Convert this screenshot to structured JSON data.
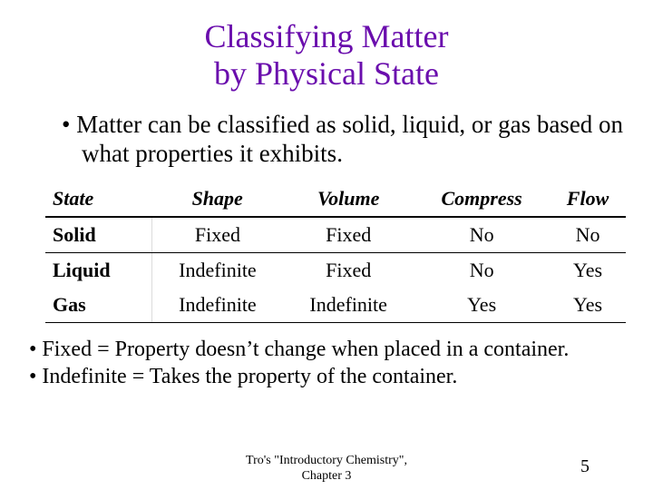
{
  "title_line1": "Classifying Matter",
  "title_line2": "by Physical State",
  "title_color": "#6a0dad",
  "main_bullet": "Matter can be classified as solid, liquid, or gas based on what properties it exhibits.",
  "table": {
    "headers": [
      "State",
      "Shape",
      "Volume",
      "Compress",
      "Flow"
    ],
    "rows": [
      {
        "state": "Solid",
        "shape": "Fixed",
        "volume": "Fixed",
        "compress": "No",
        "flow": "No"
      },
      {
        "state": "Liquid",
        "shape": "Indefinite",
        "volume": "Fixed",
        "compress": "No",
        "flow": "Yes"
      },
      {
        "state": "Gas",
        "shape": "Indefinite",
        "volume": "Indefinite",
        "compress": "Yes",
        "flow": "Yes"
      }
    ],
    "header_fontsize": 22,
    "cell_fontsize": 22,
    "border_color": "#000000"
  },
  "definitions": [
    "Fixed = Property doesn’t change when placed in a container.",
    "Indefinite = Takes the property of the container."
  ],
  "footer_line1": "Tro's \"Introductory Chemistry\",",
  "footer_line2": "Chapter 3",
  "page_number": "5",
  "background_color": "#ffffff",
  "text_color": "#000000"
}
